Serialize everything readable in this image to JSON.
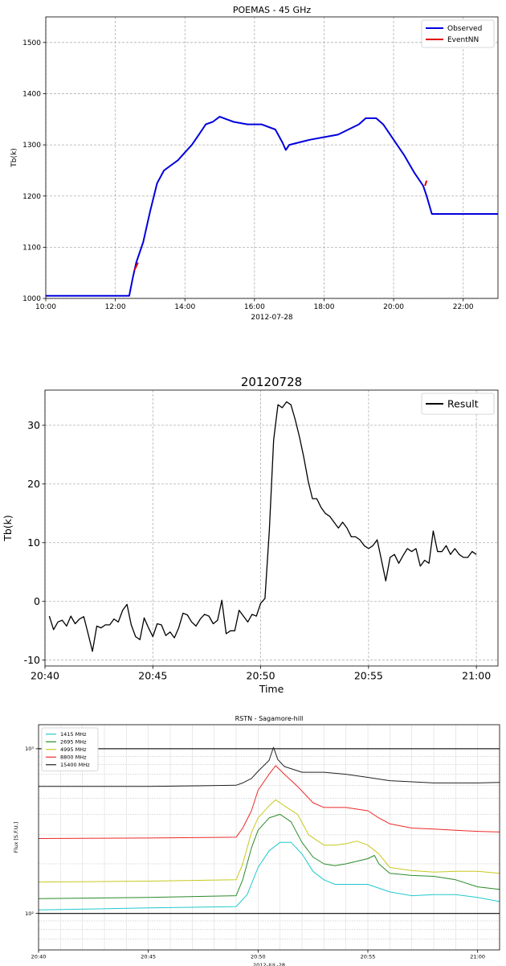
{
  "chart_data": [
    {
      "type": "line",
      "title": "POEMAS - 45 GHz",
      "ylabel": "Tb(k)",
      "xlabel": "2012-07-28",
      "xlim": [
        10.0,
        23.0
      ],
      "ylim": [
        1000,
        1550
      ],
      "x_ticks": [
        "10:00",
        "12:00",
        "14:00",
        "16:00",
        "18:00",
        "20:00",
        "22:00"
      ],
      "y_ticks": [
        "1000",
        "1100",
        "1200",
        "1300",
        "1400",
        "1500"
      ],
      "grid": true,
      "legend_position": "top-right",
      "series": [
        {
          "name": "Observed",
          "color": "#0000dd",
          "x": [
            10.0,
            12.4,
            12.5,
            12.6,
            12.8,
            13.0,
            13.2,
            13.4,
            13.6,
            13.8,
            14.0,
            14.2,
            14.4,
            14.6,
            14.8,
            15.0,
            15.2,
            15.4,
            15.8,
            16.2,
            16.6,
            16.8,
            16.9,
            17.0,
            17.3,
            17.6,
            18.0,
            18.4,
            18.7,
            19.0,
            19.2,
            19.5,
            19.7,
            20.0,
            20.3,
            20.6,
            20.85,
            20.95,
            21.1,
            23.0
          ],
          "y": [
            1005,
            1005,
            1040,
            1070,
            1110,
            1170,
            1225,
            1250,
            1260,
            1270,
            1285,
            1300,
            1320,
            1340,
            1345,
            1355,
            1350,
            1345,
            1340,
            1340,
            1330,
            1305,
            1290,
            1300,
            1305,
            1310,
            1315,
            1320,
            1330,
            1340,
            1352,
            1352,
            1340,
            1310,
            1280,
            1245,
            1220,
            1200,
            1165,
            1165
          ]
        },
        {
          "name": "EventNN",
          "color": "#dd0000",
          "x": [
            12.55,
            12.65,
            20.9,
            20.95
          ],
          "y": [
            1055,
            1070,
            1220,
            1230
          ]
        }
      ]
    },
    {
      "type": "line",
      "title": "20120728",
      "ylabel": "Tb(k)",
      "xlabel": "Time",
      "xlim": [
        40.0,
        61.0
      ],
      "ylim": [
        -11,
        36
      ],
      "x_ticks": [
        "20:40",
        "20:45",
        "20:50",
        "20:55",
        "21:00"
      ],
      "y_ticks": [
        "-10",
        "0",
        "10",
        "20",
        "30"
      ],
      "grid": true,
      "legend_position": "top-right",
      "series": [
        {
          "name": "Result",
          "color": "#000000",
          "x": [
            40.2,
            40.4,
            40.6,
            40.8,
            41.0,
            41.2,
            41.4,
            41.6,
            41.8,
            42.0,
            42.2,
            42.4,
            42.6,
            42.8,
            43.0,
            43.2,
            43.4,
            43.6,
            43.8,
            44.0,
            44.2,
            44.4,
            44.6,
            44.8,
            45.0,
            45.2,
            45.4,
            45.6,
            45.8,
            46.0,
            46.2,
            46.4,
            46.6,
            46.8,
            47.0,
            47.2,
            47.4,
            47.6,
            47.8,
            48.0,
            48.2,
            48.4,
            48.6,
            48.8,
            49.0,
            49.2,
            49.4,
            49.6,
            49.8,
            50.0,
            50.2,
            50.4,
            50.6,
            50.8,
            51.0,
            51.2,
            51.4,
            51.6,
            51.8,
            52.0,
            52.2,
            52.4,
            52.6,
            52.8,
            53.0,
            53.2,
            53.4,
            53.6,
            53.8,
            54.0,
            54.2,
            54.4,
            54.6,
            54.8,
            55.0,
            55.2,
            55.4,
            55.6,
            55.8,
            56.0,
            56.2,
            56.4,
            56.6,
            56.8,
            57.0,
            57.2,
            57.4,
            57.6,
            57.8,
            58.0,
            58.2,
            58.4,
            58.6,
            58.8,
            59.0,
            59.2,
            59.4,
            59.6,
            59.8,
            60.0
          ],
          "y": [
            -2.5,
            -4.8,
            -3.5,
            -3.2,
            -4.2,
            -2.5,
            -3.8,
            -3.0,
            -2.6,
            -5.5,
            -8.5,
            -4.2,
            -4.5,
            -4.0,
            -4.0,
            -3.0,
            -3.5,
            -1.5,
            -0.5,
            -4.0,
            -6.0,
            -6.5,
            -2.8,
            -4.5,
            -6.0,
            -3.8,
            -4.0,
            -5.8,
            -5.2,
            -6.2,
            -4.5,
            -2.0,
            -2.3,
            -3.5,
            -4.2,
            -3.0,
            -2.2,
            -2.5,
            -3.8,
            -3.2,
            0.2,
            -5.5,
            -5.0,
            -5.0,
            -1.5,
            -2.5,
            -3.5,
            -2.2,
            -2.5,
            -0.3,
            0.5,
            12.0,
            27.5,
            33.5,
            33.0,
            34.0,
            33.5,
            31.0,
            28.0,
            24.5,
            20.5,
            17.5,
            17.5,
            16.0,
            15.0,
            14.5,
            13.5,
            12.5,
            13.5,
            12.5,
            11.0,
            11.0,
            10.5,
            9.5,
            9.0,
            9.5,
            10.5,
            7.0,
            3.5,
            7.5,
            8.0,
            6.5,
            7.8,
            9.0,
            8.5,
            9.0,
            6.0,
            7.0,
            6.5,
            12.0,
            8.5,
            8.5,
            9.5,
            8.0,
            9.0,
            8.0,
            7.5,
            7.5,
            8.5,
            8.0
          ]
        }
      ]
    },
    {
      "type": "line",
      "title": "RSTN - Sagamore-hill",
      "ylabel": "Flux [S.F.U.]",
      "xlabel": "2012-JUL-28",
      "log_y": true,
      "xlim": [
        40.0,
        61.0
      ],
      "ylim": [
        60,
        1400
      ],
      "x_ticks": [
        "20:40",
        "20:45",
        "20:50",
        "20:55",
        "21:00"
      ],
      "y_ticks": [
        "10²",
        "10³"
      ],
      "grid": true,
      "legend_position": "top-left",
      "series": [
        {
          "name": "1415 MHz",
          "color": "#22c8cc",
          "x": [
            40.0,
            45.0,
            49.0,
            49.5,
            50.0,
            50.5,
            51.0,
            51.5,
            52.0,
            52.5,
            53.0,
            53.5,
            54.0,
            55.0,
            56.0,
            57.0,
            58.0,
            59.0,
            60.0,
            61.0
          ],
          "y": [
            105,
            108,
            110,
            130,
            190,
            240,
            270,
            270,
            230,
            180,
            160,
            150,
            150,
            150,
            135,
            128,
            130,
            130,
            125,
            118
          ]
        },
        {
          "name": "2695 MHz",
          "color": "#2a8a2a",
          "x": [
            40.0,
            45.0,
            49.0,
            49.3,
            49.7,
            50.0,
            50.5,
            51.0,
            51.5,
            52.0,
            52.5,
            53.0,
            53.5,
            54.0,
            55.0,
            55.3,
            55.5,
            56.0,
            57.0,
            58.0,
            59.0,
            60.0,
            61.0
          ],
          "y": [
            123,
            125,
            128,
            160,
            250,
            320,
            380,
            400,
            360,
            270,
            220,
            200,
            195,
            200,
            215,
            225,
            200,
            175,
            170,
            168,
            160,
            145,
            140
          ]
        },
        {
          "name": "4995 MHz",
          "color": "#c8c820",
          "x": [
            40.0,
            45.0,
            49.0,
            49.3,
            49.7,
            50.0,
            50.5,
            50.8,
            51.2,
            51.8,
            52.3,
            53.0,
            53.5,
            54.0,
            54.5,
            55.0,
            55.5,
            56.0,
            57.0,
            58.0,
            59.0,
            60.0,
            61.0
          ],
          "y": [
            155,
            157,
            160,
            200,
            310,
            380,
            450,
            490,
            450,
            400,
            300,
            260,
            260,
            265,
            275,
            260,
            230,
            190,
            182,
            178,
            180,
            180,
            175
          ]
        },
        {
          "name": "8800 MHz",
          "color": "#ee2828",
          "x": [
            40.0,
            45.0,
            49.0,
            49.3,
            49.7,
            50.0,
            50.5,
            50.8,
            51.2,
            51.8,
            52.5,
            53.0,
            53.5,
            54.0,
            55.0,
            55.5,
            56.0,
            57.0,
            58.0,
            59.0,
            60.0,
            61.0
          ],
          "y": [
            285,
            287,
            290,
            330,
            420,
            560,
            700,
            790,
            700,
            590,
            470,
            440,
            440,
            440,
            420,
            380,
            350,
            330,
            325,
            320,
            315,
            312
          ]
        },
        {
          "name": "15400 MHz",
          "color": "#222222",
          "x": [
            40.0,
            45.0,
            49.0,
            49.3,
            49.7,
            50.0,
            50.5,
            50.7,
            50.9,
            51.2,
            52.0,
            53.0,
            54.0,
            55.0,
            56.0,
            57.0,
            58.0,
            59.0,
            60.0,
            61.0
          ],
          "y": [
            590,
            590,
            600,
            620,
            660,
            730,
            850,
            1020,
            860,
            780,
            720,
            720,
            700,
            670,
            640,
            630,
            620,
            620,
            620,
            625
          ]
        }
      ]
    }
  ]
}
